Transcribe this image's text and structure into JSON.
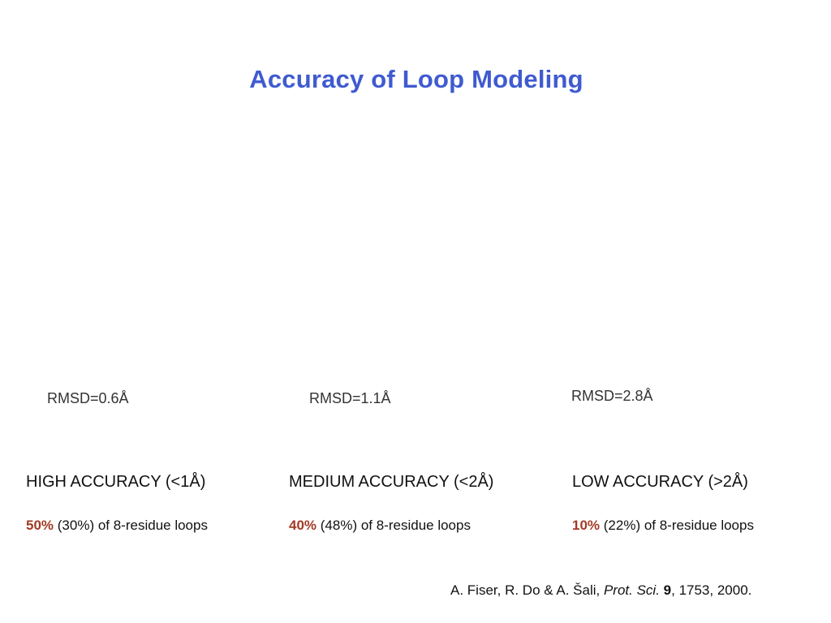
{
  "slide": {
    "title": "Accuracy of Loop Modeling",
    "columns": [
      {
        "rmsd": "RMSD=0.6Å",
        "accuracy": "HIGH ACCURACY (<1Å)",
        "percent": "50%",
        "stat_rest": " (30%) of 8-residue loops"
      },
      {
        "rmsd": "RMSD=1.1Å",
        "accuracy": "MEDIUM ACCURACY (<2Å)",
        "percent": "40%",
        "stat_rest": " (48%) of 8-residue loops"
      },
      {
        "rmsd": "RMSD=2.8Å",
        "accuracy": "LOW ACCURACY (>2Å)",
        "percent": "10%",
        "stat_rest": " (22%) of 8-residue loops"
      }
    ],
    "citation": {
      "authors": "A. Fiser, R. Do & A. Šali, ",
      "journal": "Prot. Sci.",
      "sep1": " ",
      "volume": "9",
      "rest": ", 1753, 2000."
    }
  }
}
